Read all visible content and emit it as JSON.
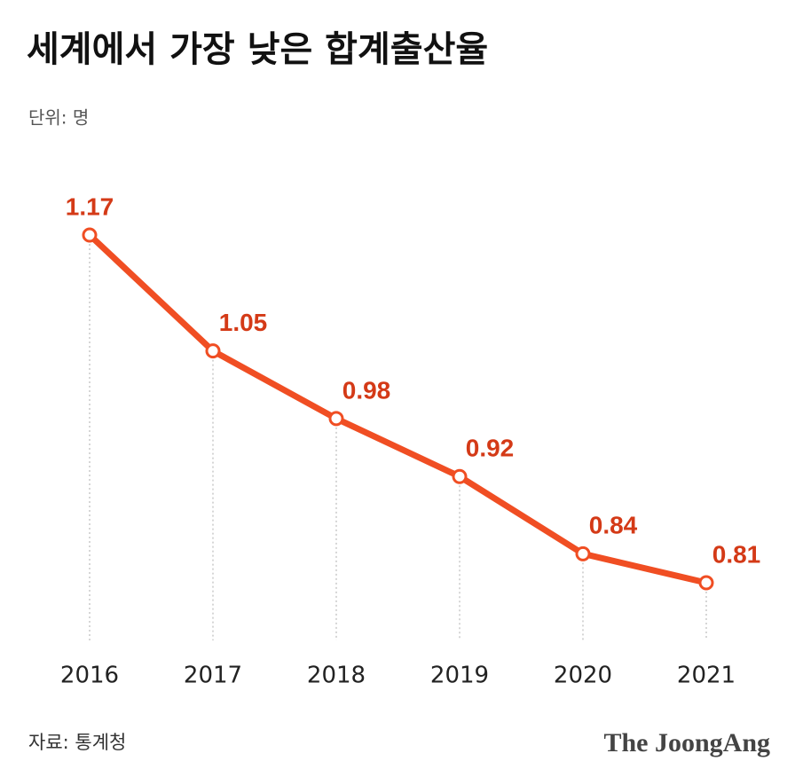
{
  "chart_data": {
    "type": "line",
    "title": "세계에서 가장 낮은 합계출산율",
    "subtitle": "단위: 명",
    "categories": [
      "2016",
      "2017",
      "2018",
      "2019",
      "2020",
      "2021"
    ],
    "values": [
      1.17,
      1.05,
      0.98,
      0.92,
      0.84,
      0.81
    ],
    "color": "#f04e23",
    "source": "자료: 통계청",
    "logo": "The JoongAng"
  }
}
